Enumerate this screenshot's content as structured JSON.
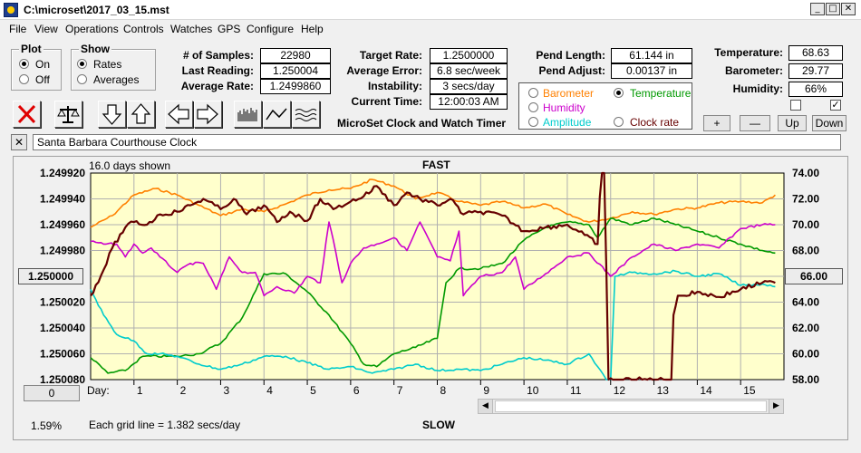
{
  "window": {
    "title": "C:\\microset\\2017_03_15.mst",
    "min": "_",
    "max": "□",
    "close": "✕"
  },
  "menu": [
    "File",
    "View",
    "Operations",
    "Controls",
    "Watches",
    "GPS",
    "Configure",
    "Help"
  ],
  "plot_group": {
    "title": "Plot",
    "on": "On",
    "off": "Off",
    "selected": "On"
  },
  "show_group": {
    "title": "Show",
    "rates": "Rates",
    "averages": "Averages",
    "selected": "Rates"
  },
  "stats": {
    "samples_label": "# of Samples:",
    "samples": "22980",
    "last_label": "Last Reading:",
    "last": "1.250004",
    "avg_label": "Average Rate:",
    "avg": "1.2499860",
    "target_label": "Target Rate:",
    "target": "1.2500000",
    "err_label": "Average Error:",
    "err": "6.8 sec/week",
    "inst_label": "Instability:",
    "inst": "3 secs/day",
    "time_label": "Current Time:",
    "time": "12:00:03 AM",
    "pendlen_label": "Pend Length:",
    "pendlen": "61.144 in",
    "pendadj_label": "Pend Adjust:",
    "pendadj": "0.00137 in",
    "temp_label": "Temperature:",
    "temp": "68.63",
    "baro_label": "Barometer:",
    "baro": "29.77",
    "hum_label": "Humidity:",
    "hum": "66%"
  },
  "app_caption": "MicroSet Clock and Watch Timer",
  "sensors": {
    "barometer": "Barometer",
    "temperature": "Temperature",
    "humidity": "Humidity",
    "amplitude": "Amplitude",
    "clockrate": "Clock rate",
    "selected": "Temperature",
    "barometer_color": "#ff8000",
    "temperature_color": "#009900",
    "humidity_color": "#cc00cc",
    "amplitude_color": "#00cccc",
    "clockrate_color": "#660000"
  },
  "scale_buttons": {
    "plus": "+",
    "minus": "—",
    "up": "Up",
    "down": "Down"
  },
  "checkboxes": {
    "left_checked": false,
    "right_checked": true,
    "check_glyph": "✓"
  },
  "name_field": {
    "close": "✕",
    "value": "Santa Barbara Courthouse Clock"
  },
  "chart_header": {
    "days_shown": "16.0 days shown",
    "fast": "FAST",
    "slow": "SLOW",
    "grid_note": "Each grid line = 1.382 secs/day",
    "percent": "1.59%",
    "day_label": "Day:",
    "zero_btn": "0"
  },
  "left_center_box": "1.250000",
  "right_center_box": "66.00",
  "chart_data": {
    "type": "line",
    "x_unit": "days",
    "xlim": [
      0,
      16
    ],
    "x_ticks": [
      1,
      2,
      3,
      4,
      5,
      6,
      7,
      8,
      9,
      10,
      11,
      12,
      13,
      14,
      15
    ],
    "y_left_ticks": [
      "1.249920",
      "1.249940",
      "1.249960",
      "1.249980",
      "1.250000",
      "1.250020",
      "1.250040",
      "1.250060",
      "1.250080"
    ],
    "y_left_range": [
      1.24992,
      1.25008
    ],
    "y_right_ticks": [
      "74.00",
      "72.00",
      "70.00",
      "68.00",
      "66.00",
      "64.00",
      "62.00",
      "60.00",
      "58.00"
    ],
    "y_right_range": [
      74,
      58
    ],
    "background": "#ffffcc",
    "series": [
      {
        "key": "barometer",
        "color": "#ff8000",
        "x": [
          0,
          0.5,
          1,
          1.5,
          2,
          2.5,
          3,
          3.5,
          4,
          4.5,
          5,
          5.5,
          6,
          6.5,
          7,
          7.5,
          8,
          8.5,
          9,
          9.5,
          10,
          10.5,
          11,
          11.5,
          12,
          12.5,
          13,
          13.5,
          14,
          14.5,
          15,
          15.5,
          15.8
        ],
        "y": [
          1.249962,
          1.249953,
          1.249937,
          1.249932,
          1.249937,
          1.249945,
          1.249953,
          1.249948,
          1.24995,
          1.249944,
          1.249937,
          1.249933,
          1.249932,
          1.249925,
          1.24993,
          1.24994,
          1.249935,
          1.249942,
          1.249945,
          1.249942,
          1.249947,
          1.249944,
          1.249952,
          1.249958,
          1.249955,
          1.24995,
          1.249952,
          1.249948,
          1.249947,
          1.249943,
          1.249942,
          1.249943,
          1.249937
        ]
      },
      {
        "key": "temperature",
        "color": "#009900",
        "x": [
          0,
          0.4,
          0.8,
          1.2,
          2,
          2.5,
          3,
          3.5,
          4,
          4.5,
          5,
          5.5,
          6,
          6.3,
          6.6,
          7,
          7.5,
          8,
          8.2,
          8.5,
          9,
          9.5,
          10,
          10.5,
          11,
          11.5,
          11.7,
          12,
          12.5,
          13,
          13.5,
          14,
          14.5,
          15,
          15.5,
          15.8
        ],
        "y": [
          1.250063,
          1.250075,
          1.250073,
          1.250062,
          1.250062,
          1.25006,
          1.250052,
          1.250032,
          1.249998,
          1.249998,
          1.250012,
          1.25003,
          1.250052,
          1.250068,
          1.25007,
          1.25006,
          1.250055,
          1.250048,
          1.250005,
          1.249994,
          1.249994,
          1.24999,
          1.249972,
          1.249962,
          1.249958,
          1.24996,
          1.24997,
          1.249955,
          1.24996,
          1.249955,
          1.24996,
          1.249965,
          1.24997,
          1.249975,
          1.24998,
          1.249982
        ]
      },
      {
        "key": "humidity",
        "color": "#cc00cc",
        "x": [
          0,
          0.3,
          0.6,
          0.8,
          1,
          1.2,
          1.4,
          1.6,
          2,
          2.3,
          2.6,
          2.9,
          3.2,
          3.5,
          3.8,
          4,
          4.3,
          4.7,
          5,
          5.3,
          5.5,
          5.6,
          5.8,
          6,
          6.3,
          6.6,
          7,
          7.3,
          7.6,
          8,
          8.3,
          8.5,
          8.6,
          9,
          9.5,
          9.8,
          10,
          10.5,
          11,
          11.5,
          12,
          12.5,
          13,
          13.5,
          14,
          14.5,
          15,
          15.5,
          15.8
        ],
        "y": [
          1.249973,
          1.249975,
          1.249975,
          1.249985,
          1.249975,
          1.249982,
          1.249978,
          1.249985,
          1.249997,
          1.24999,
          1.24999,
          1.25001,
          1.249985,
          1.249997,
          1.249997,
          1.250015,
          1.250008,
          1.250013,
          1.25,
          1.250005,
          1.249958,
          1.249972,
          1.250005,
          1.24999,
          1.249978,
          1.249975,
          1.24997,
          1.24998,
          1.249958,
          1.249985,
          1.249988,
          1.249965,
          1.250015,
          1.25,
          1.249997,
          1.249985,
          1.25001,
          1.249998,
          1.249985,
          1.249982,
          1.25,
          1.249985,
          1.249975,
          1.24998,
          1.249975,
          1.249978,
          1.249963,
          1.24996,
          1.24996
        ]
      },
      {
        "key": "amplitude",
        "color": "#00cccc",
        "x": [
          0,
          0.3,
          0.6,
          1,
          1.3,
          1.6,
          2,
          2.5,
          3,
          3.5,
          4,
          4.5,
          5,
          5.5,
          6,
          6.5,
          7,
          7.5,
          8,
          8.5,
          9,
          9.5,
          10,
          10.5,
          11,
          11.5,
          11.9,
          12,
          12.1,
          12.5,
          13,
          13.5,
          14,
          14.5,
          15,
          15.5,
          15.8
        ],
        "y": [
          1.25001,
          1.25003,
          1.250045,
          1.25005,
          1.25006,
          1.25006,
          1.250062,
          1.250068,
          1.250072,
          1.250068,
          1.250062,
          1.250062,
          1.250067,
          1.250072,
          1.25007,
          1.250075,
          1.250072,
          1.250068,
          1.250073,
          1.250072,
          1.250073,
          1.250068,
          1.250063,
          1.250065,
          1.250068,
          1.25006,
          1.25008,
          1.25008,
          1.25,
          1.249997,
          1.249998,
          1.249996,
          1.25,
          1.249998,
          1.250007,
          1.250006,
          1.250008
        ]
      },
      {
        "key": "clockrate",
        "color": "#660000",
        "x": [
          0,
          0.3,
          0.5,
          0.8,
          1,
          1.3,
          1.6,
          2,
          2.3,
          2.6,
          3,
          3.3,
          3.6,
          4,
          4.3,
          4.6,
          5,
          5.3,
          5.6,
          6,
          6.3,
          6.6,
          7,
          7.3,
          7.6,
          8,
          8.3,
          8.6,
          9,
          9.5,
          10,
          10.5,
          11,
          11.4,
          11.7,
          11.8,
          11.85,
          11.95,
          12.05,
          13.4,
          13.45,
          13.55,
          13.7,
          14,
          14.5,
          15,
          15.5,
          15.8
        ],
        "y": [
          1.250015,
          1.249995,
          1.249978,
          1.249962,
          1.249958,
          1.24996,
          1.249952,
          1.24995,
          1.249945,
          1.24994,
          1.249948,
          1.24994,
          1.249952,
          1.249945,
          1.249958,
          1.24995,
          1.249957,
          1.24994,
          1.249948,
          1.249942,
          1.249938,
          1.24993,
          1.249945,
          1.249935,
          1.24994,
          1.249945,
          1.24994,
          1.249952,
          1.24995,
          1.249953,
          1.249965,
          1.249962,
          1.24996,
          1.249968,
          1.249975,
          1.249905,
          1.24991,
          1.25008,
          1.25008,
          1.25008,
          1.25003,
          1.250015,
          1.250015,
          1.250012,
          1.250016,
          1.25001,
          1.250005,
          1.250005
        ]
      }
    ]
  }
}
